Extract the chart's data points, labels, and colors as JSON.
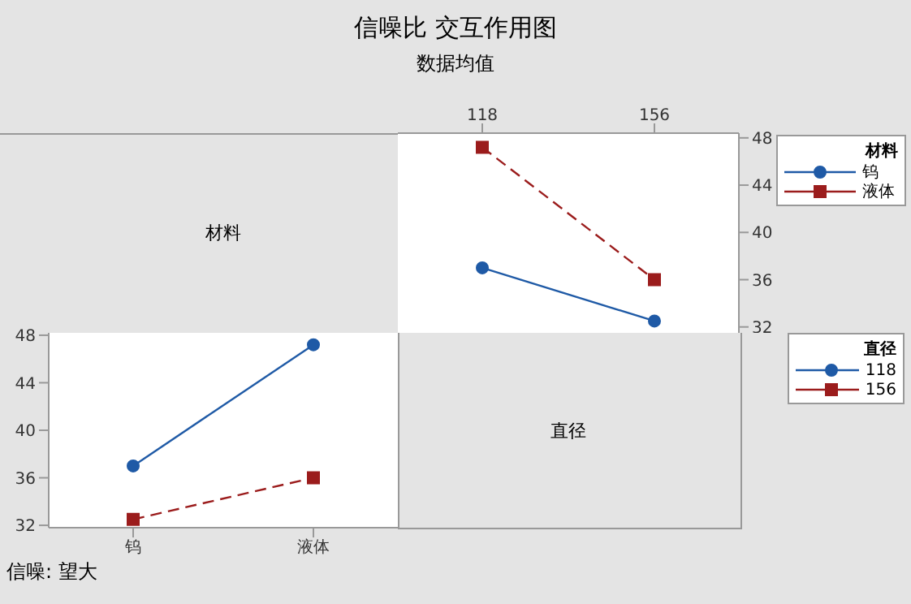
{
  "chart_data": [
    {
      "type": "other",
      "title": "信噪比 交互作用图",
      "subtitle": "数据均值"
    },
    {
      "type": "other",
      "annotations": [
        "材料"
      ]
    },
    {
      "type": "line",
      "categories": [
        "118",
        "156"
      ],
      "legend_title": "材料",
      "legend": "top right",
      "ylim": [
        31.5,
        48.4
      ],
      "yticks": [
        32,
        36,
        40,
        44,
        48
      ],
      "series": [
        {
          "name": "钨",
          "color": "#1f5aa6",
          "values": [
            37,
            32.5
          ],
          "marker": "circle",
          "line_style": "solid"
        },
        {
          "name": "液体",
          "color": "#9b1c1c",
          "values": [
            47.2,
            36
          ],
          "marker": "square",
          "line_style": "dashed"
        }
      ]
    },
    {
      "type": "line",
      "categories": [
        "钨",
        "液体"
      ],
      "legend_title": "直径",
      "legend": "right",
      "ylim": [
        31.8,
        48.2
      ],
      "yticks": [
        32,
        36,
        40,
        44,
        48
      ],
      "series": [
        {
          "name": "118",
          "color": "#1f5aa6",
          "values": [
            37,
            47.2
          ],
          "marker": "circle",
          "line_style": "solid"
        },
        {
          "name": "156",
          "color": "#9b1c1c",
          "values": [
            32.5,
            36
          ],
          "marker": "square",
          "line_style": "dashed"
        }
      ]
    },
    {
      "type": "other",
      "annotations": [
        "直径"
      ]
    },
    {
      "type": "other",
      "annotations": [
        "信噪: 望大"
      ]
    }
  ]
}
